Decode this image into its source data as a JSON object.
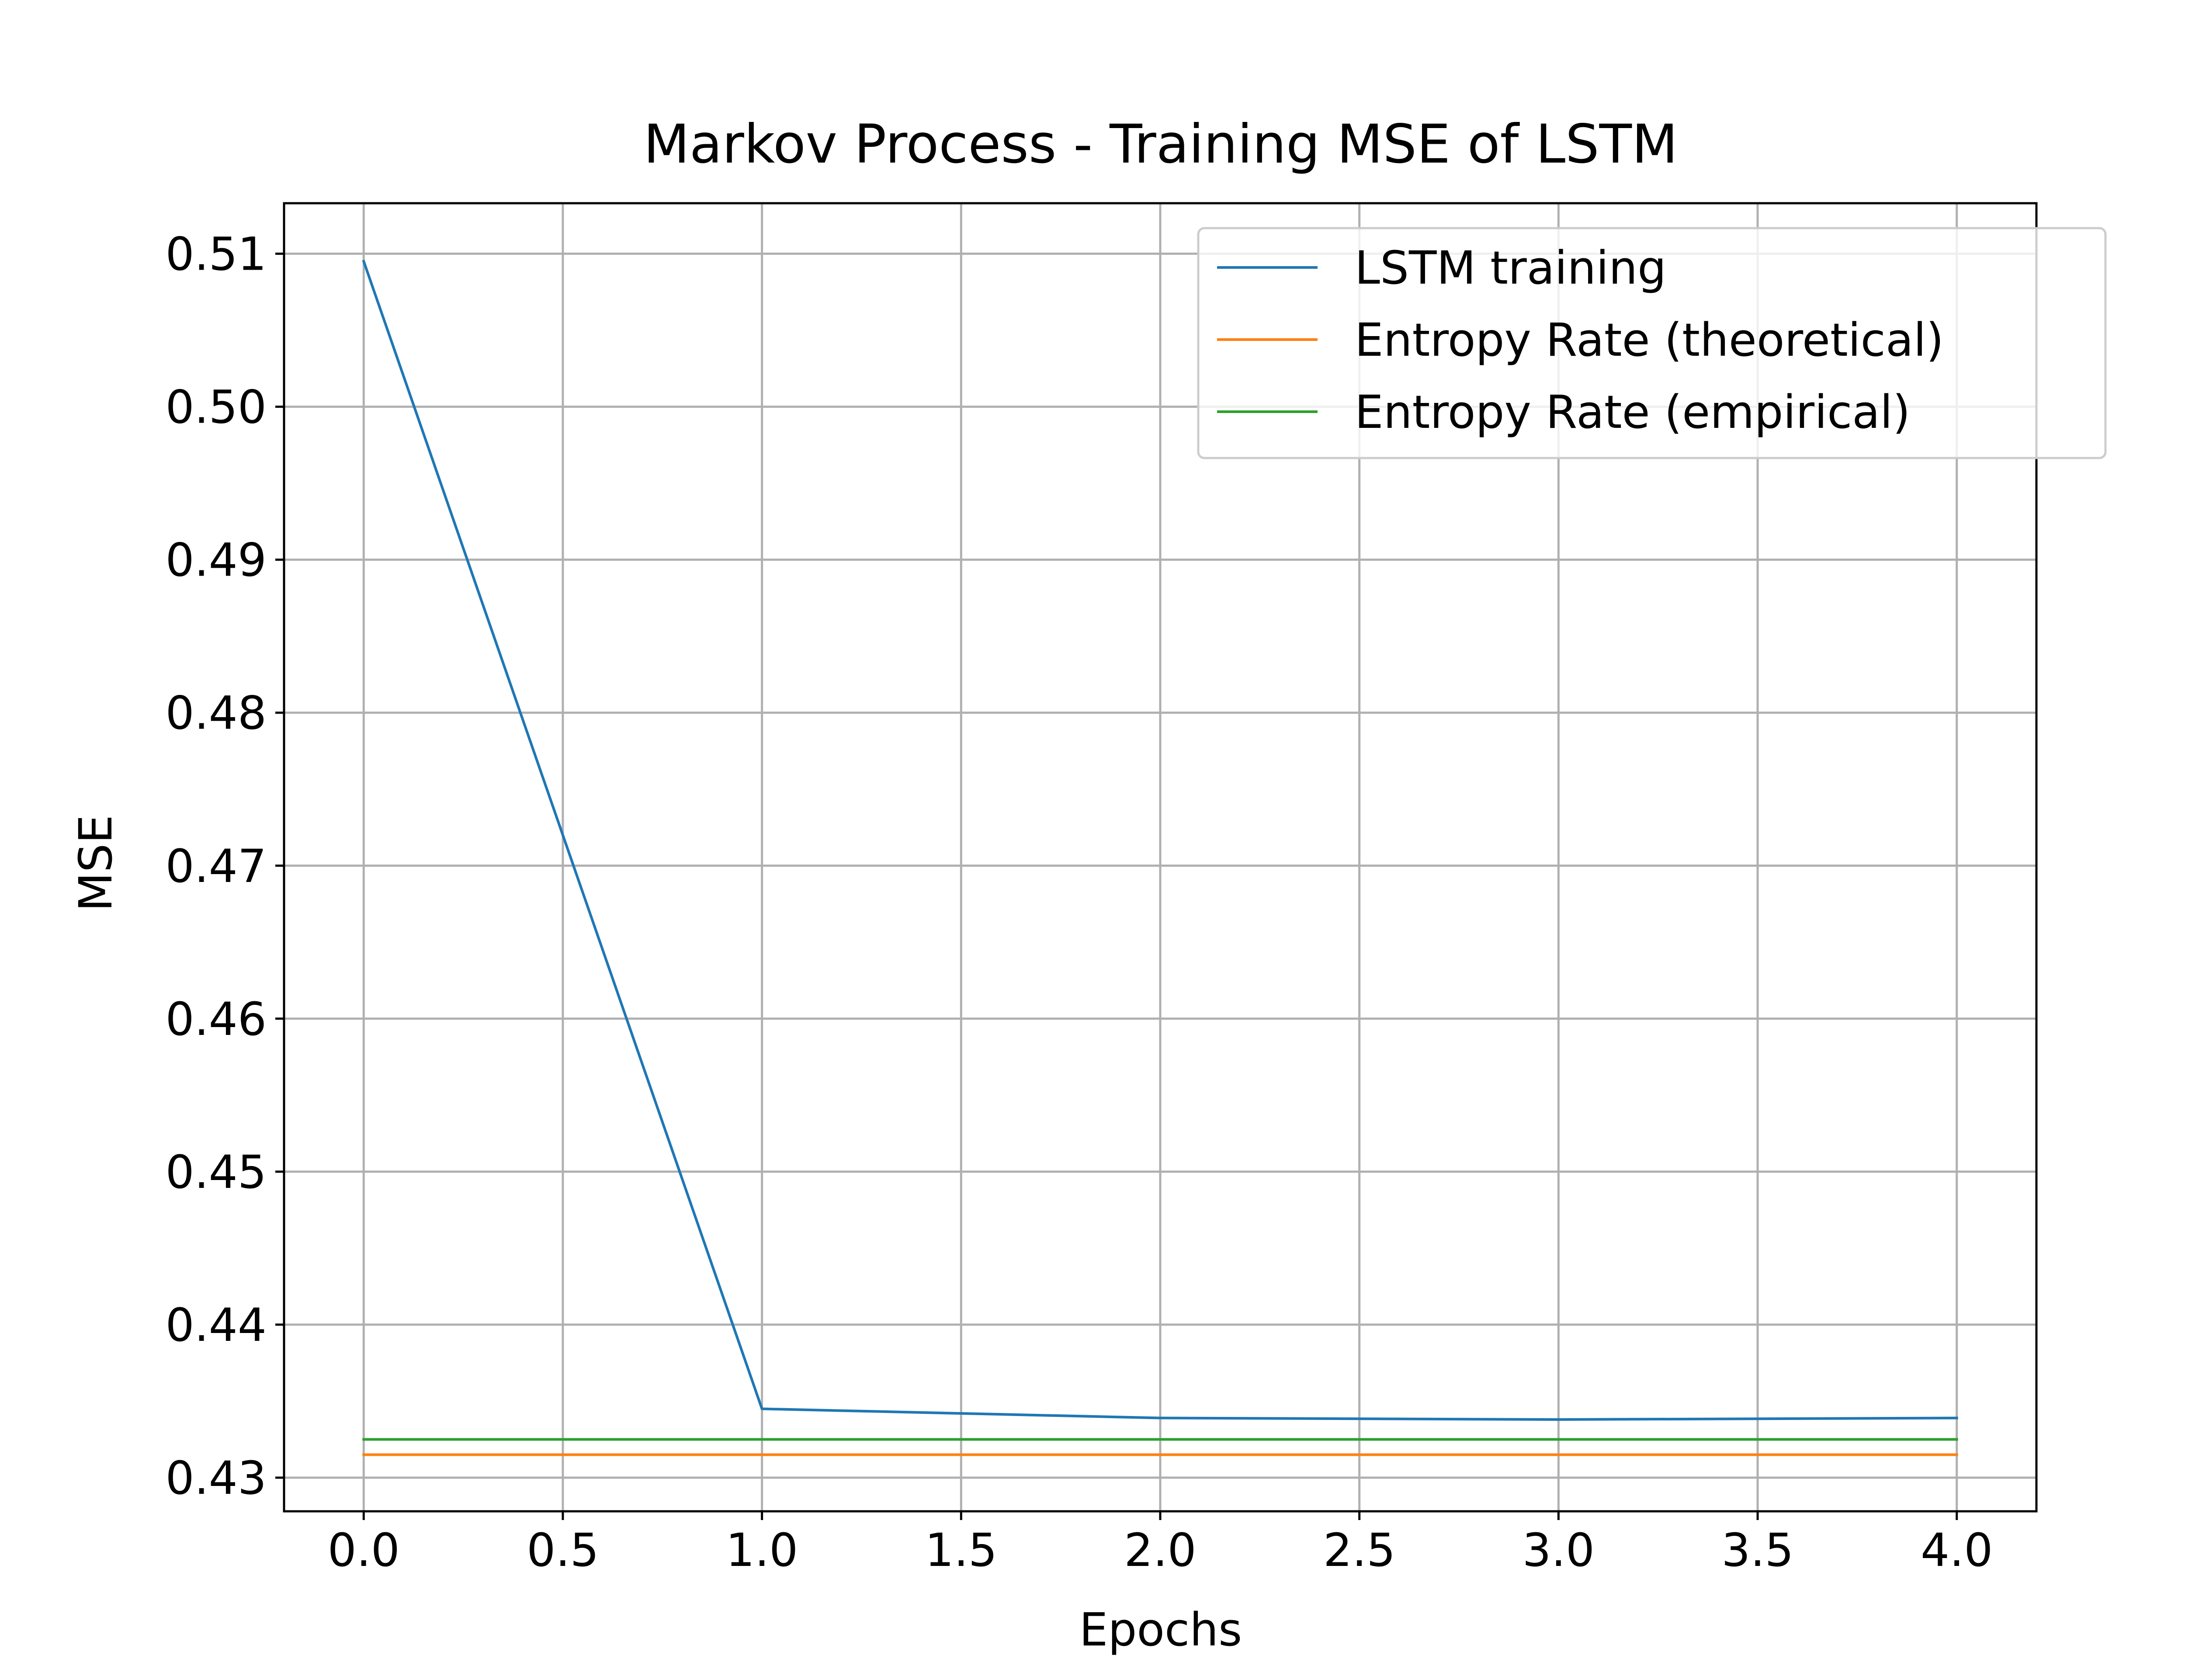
{
  "chart_data": {
    "type": "line",
    "title": "Markov Process - Training MSE of LSTM",
    "xlabel": "Epochs",
    "ylabel": "MSE",
    "xlim": [
      -0.2,
      4.2
    ],
    "ylim": [
      0.4278,
      0.5133
    ],
    "xticks": [
      0.0,
      0.5,
      1.0,
      1.5,
      2.0,
      2.5,
      3.0,
      3.5,
      4.0
    ],
    "xtick_labels": [
      "0.0",
      "0.5",
      "1.0",
      "1.5",
      "2.0",
      "2.5",
      "3.0",
      "3.5",
      "4.0"
    ],
    "yticks": [
      0.43,
      0.44,
      0.45,
      0.46,
      0.47,
      0.48,
      0.49,
      0.5,
      0.51
    ],
    "ytick_labels": [
      "0.43",
      "0.44",
      "0.45",
      "0.46",
      "0.47",
      "0.48",
      "0.49",
      "0.50",
      "0.51"
    ],
    "grid": true,
    "legend_position": "top-right",
    "series": [
      {
        "name": "LSTM training",
        "color": "#1f77b4",
        "x": [
          0,
          1,
          2,
          3,
          4
        ],
        "y": [
          0.5095,
          0.4345,
          0.4339,
          0.4338,
          0.4339
        ]
      },
      {
        "name": "Entropy Rate (theoretical)",
        "color": "#ff7f0e",
        "x": [
          0,
          4
        ],
        "y": [
          0.4315,
          0.4315
        ]
      },
      {
        "name": "Entropy Rate (empirical)",
        "color": "#2ca02c",
        "x": [
          0,
          4
        ],
        "y": [
          0.4325,
          0.4325
        ]
      }
    ]
  }
}
